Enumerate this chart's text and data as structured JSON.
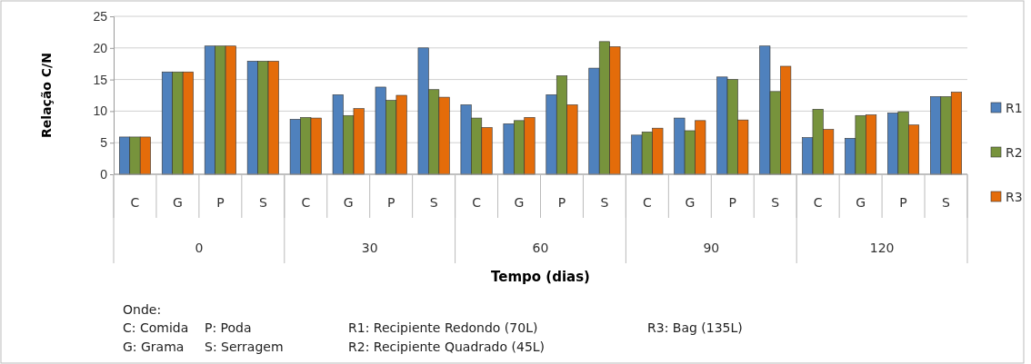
{
  "chart_data": {
    "type": "bar",
    "xlabel": "Tempo (dias)",
    "ylabel": "Relação C/N",
    "categories": [
      "C",
      "G",
      "P",
      "S",
      "C",
      "G",
      "P",
      "S",
      "C",
      "G",
      "P",
      "S",
      "C",
      "G",
      "P",
      "S",
      "C",
      "G",
      "P",
      "S"
    ],
    "series": [
      {
        "name": "R1",
        "color": "#4f81bd",
        "values": [
          5.9,
          16.2,
          20.3,
          17.9,
          8.7,
          12.6,
          13.8,
          20.0,
          11.0,
          8.0,
          12.6,
          16.8,
          6.2,
          8.9,
          15.4,
          20.3,
          5.8,
          5.7,
          9.7,
          12.3
        ]
      },
      {
        "name": "R2",
        "color": "#77933c",
        "values": [
          5.9,
          16.2,
          20.3,
          17.9,
          9.0,
          9.3,
          11.7,
          13.4,
          8.9,
          8.5,
          15.6,
          21.0,
          6.7,
          6.9,
          15.0,
          13.1,
          10.3,
          9.3,
          9.9,
          12.3
        ]
      },
      {
        "name": "R3",
        "color": "#e46c0a",
        "values": [
          5.9,
          16.2,
          20.3,
          17.9,
          8.9,
          10.4,
          12.5,
          12.2,
          7.4,
          9.0,
          11.0,
          20.2,
          7.3,
          8.5,
          8.6,
          17.1,
          7.1,
          9.4,
          7.8,
          13.0
        ]
      }
    ],
    "ylim": [
      0,
      25
    ],
    "yticks": [
      0,
      5,
      10,
      15,
      20,
      25
    ],
    "grid": "y",
    "legend": "right",
    "annotations": [
      "0",
      "30",
      "60",
      "90",
      "120",
      "Onde:",
      "C:  Comida",
      "P:  Poda",
      "R1:  Recipiente Redondo (70L)",
      "R3:  Bag (135L)",
      "G: Grama",
      "S: Serragem",
      "R2:  Recipiente Quadrado (45L)"
    ]
  }
}
